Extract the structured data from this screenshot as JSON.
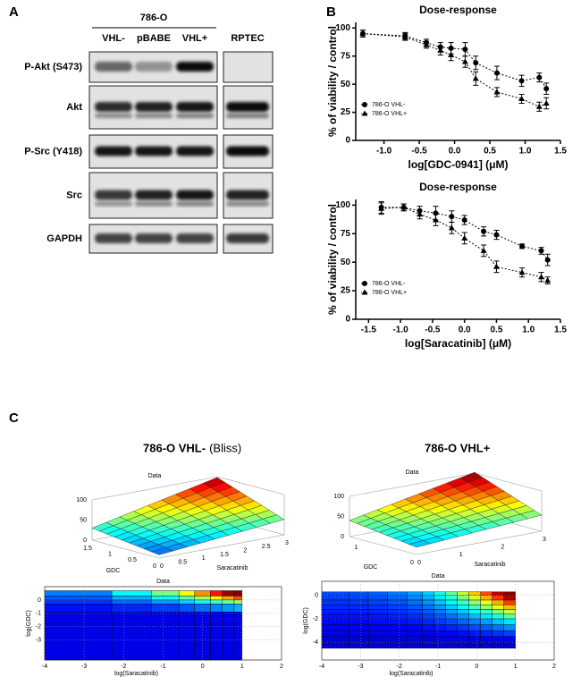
{
  "panel_labels": [
    "A",
    "B",
    "C"
  ],
  "blot": {
    "cell_line": "786-O",
    "lanes": [
      "VHL-",
      "pBABE",
      "VHL+",
      "RPTEC"
    ],
    "rows": [
      "P-Akt (S473)",
      "Akt",
      "P-Src (Y418)",
      "Src",
      "GAPDH"
    ]
  },
  "chart_data": [
    {
      "type": "line",
      "title": "Dose-response",
      "xlabel": "log[GDC-0941] (μM)",
      "ylabel": "% of viability / control",
      "xlim": [
        -1.4,
        1.5
      ],
      "xticks": [
        {
          "value": -1,
          "label": "-1.0"
        },
        -0.5,
        {
          "value": 0,
          "label": "0.0"
        },
        0.5,
        {
          "value": 1,
          "label": "1.0"
        },
        1.5
      ],
      "ylim": [
        0,
        105
      ],
      "yticks": [
        0,
        25,
        50,
        75,
        100
      ],
      "legend": "lower left",
      "series": [
        {
          "name": "786-O VHL-",
          "color": "#000000",
          "marker": "circle",
          "x": [
            -1.3,
            -0.7,
            -0.4,
            -0.2,
            -0.05,
            0.15,
            0.3,
            0.6,
            0.95,
            1.2,
            1.3
          ],
          "values": [
            95,
            93,
            87,
            83,
            82,
            81,
            69,
            60,
            53,
            56,
            46
          ],
          "errors": [
            3,
            3,
            3,
            4,
            5,
            6,
            6,
            6,
            5,
            4,
            5
          ]
        },
        {
          "name": "786-O VHL+",
          "color": "#000000",
          "marker": "triangle",
          "x": [
            -1.3,
            -0.7,
            -0.4,
            -0.2,
            -0.05,
            0.15,
            0.3,
            0.6,
            0.95,
            1.2,
            1.3
          ],
          "values": [
            95,
            92,
            85,
            80,
            76,
            70,
            55,
            43,
            37,
            30,
            33
          ],
          "errors": [
            3,
            3,
            3,
            4,
            5,
            5,
            6,
            4,
            4,
            4,
            5
          ]
        }
      ]
    },
    {
      "type": "line",
      "title": "Dose-response",
      "xlabel": "log[Saracatinib] (μM)",
      "ylabel": "% of viability / control",
      "xlim": [
        -1.7,
        1.5
      ],
      "xticks": [
        -1.5,
        {
          "value": -1,
          "label": "-1.0"
        },
        -0.5,
        {
          "value": 0,
          "label": "0.0"
        },
        0.5,
        {
          "value": 1,
          "label": "1.0"
        },
        1.5
      ],
      "ylim": [
        0,
        105
      ],
      "yticks": [
        0,
        25,
        50,
        75,
        100
      ],
      "legend": "lower left",
      "series": [
        {
          "name": "786-O VHL-",
          "color": "#000000",
          "marker": "circle",
          "x": [
            -1.3,
            -0.95,
            -0.7,
            -0.45,
            -0.2,
            0,
            0.3,
            0.5,
            0.9,
            1.2,
            1.3
          ],
          "values": [
            98,
            98,
            95,
            93,
            90,
            87,
            77,
            74,
            64,
            60,
            52
          ],
          "errors": [
            5,
            3,
            4,
            6,
            5,
            4,
            4,
            4,
            2,
            3,
            5
          ]
        },
        {
          "name": "786-O VHL+",
          "color": "#000000",
          "marker": "triangle",
          "x": [
            -1.3,
            -0.95,
            -0.7,
            -0.45,
            -0.2,
            0,
            0.3,
            0.5,
            0.9,
            1.2,
            1.3
          ],
          "values": [
            97,
            98,
            92,
            87,
            80,
            71,
            60,
            46,
            41,
            37,
            34
          ],
          "errors": [
            5,
            3,
            4,
            5,
            5,
            5,
            5,
            5,
            4,
            4,
            3
          ]
        }
      ]
    }
  ],
  "synergy": [
    {
      "title": "786-O VHL-",
      "method": "(Bliss)",
      "surface": {
        "title": "Data",
        "zticks": [
          0,
          50,
          100
        ],
        "xlabel": "Saracatinib",
        "xticks": [
          0,
          0.5,
          1,
          1.5,
          2,
          2.5,
          3
        ],
        "ylabel": "GDC",
        "yticks": [
          0,
          0.5,
          1,
          1.5
        ]
      },
      "heatmap": {
        "title": "Data",
        "xlabel": "log(Saracatinib)",
        "ylabel": "log(GDC)",
        "xticks": [
          -4,
          -3,
          -2,
          -1,
          0,
          1,
          2
        ],
        "yticks": [
          0,
          -1,
          -2,
          -3
        ]
      }
    },
    {
      "title": "786-O VHL+",
      "surface": {
        "title": "Data",
        "zticks": [
          0,
          50,
          100
        ],
        "xlabel": "Saracatinib",
        "xticks": [
          0,
          1,
          2,
          3
        ],
        "ylabel": "GDC",
        "yticks": [
          0,
          1
        ]
      },
      "heatmap": {
        "title": "Data",
        "xlabel": "log(Saracatinib)",
        "ylabel": "log(GDC)",
        "xticks": [
          -4,
          -3,
          -2,
          -1,
          0,
          1,
          2
        ],
        "yticks": [
          0,
          -2,
          -4
        ]
      }
    }
  ]
}
